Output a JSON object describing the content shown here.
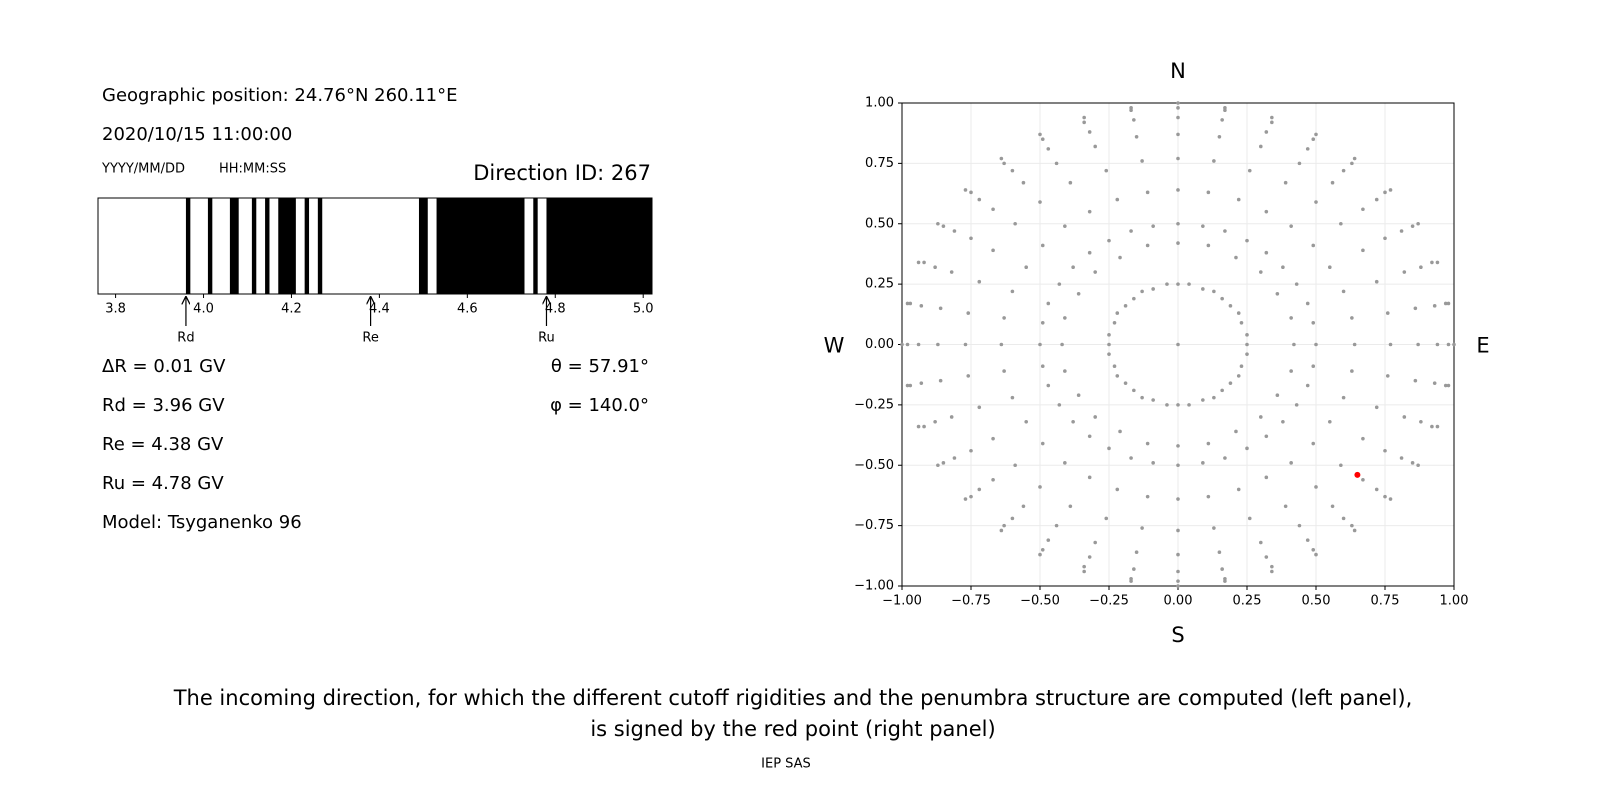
{
  "info": {
    "position": "Geographic position: 24.76°N 260.11°E",
    "datetime": "2020/10/15 11:00:00",
    "date_format": "YYYY/MM/DD",
    "time_format": "HH:MM:SS",
    "direction": "Direction ID: 267",
    "lines": [
      "ΔR = 0.01 GV",
      "Rd = 3.96 GV",
      "Re = 4.38 GV",
      "Ru = 4.78 GV",
      "Model: Tsyganenko 96"
    ],
    "angles": [
      "θ = 57.91°",
      "φ = 140.0°"
    ]
  },
  "chart_data": [
    {
      "type": "penumbra",
      "color": "#000000",
      "xlim": [
        3.76,
        5.02
      ],
      "xticks": [
        3.8,
        {
          "value": 4,
          "label": "4.0"
        },
        4.2,
        4.4,
        4.6,
        4.8,
        {
          "value": 5,
          "label": "5.0"
        }
      ],
      "bands": [
        [
          3.96,
          3.97
        ],
        [
          4.01,
          4.02
        ],
        [
          4.06,
          4.08
        ],
        [
          4.11,
          4.12
        ],
        [
          4.14,
          4.15
        ],
        [
          4.17,
          4.21
        ],
        [
          4.23,
          4.24
        ],
        [
          4.26,
          4.27
        ],
        [
          4.49,
          4.51
        ],
        [
          4.53,
          4.73
        ],
        [
          4.75,
          4.76
        ],
        [
          4.78,
          5.02
        ]
      ],
      "markers": [
        {
          "label": "Rd",
          "value": 3.96
        },
        {
          "label": "Re",
          "value": 4.38
        },
        {
          "label": "Ru",
          "value": 4.78
        }
      ]
    },
    {
      "type": "scatter",
      "xlim": [
        -1,
        1
      ],
      "ylim": [
        -1,
        1
      ],
      "grid": true,
      "xticks": [
        {
          "value": -1,
          "label": "−1.00"
        },
        {
          "value": -0.75,
          "label": "−0.75"
        },
        {
          "value": -0.5,
          "label": "−0.50"
        },
        {
          "value": -0.25,
          "label": "−0.25"
        },
        {
          "value": 0,
          "label": "0.00"
        },
        {
          "value": 0.25,
          "label": "0.25"
        },
        {
          "value": 0.5,
          "label": "0.50"
        },
        {
          "value": 0.75,
          "label": "0.75"
        },
        {
          "value": 1,
          "label": "1.00"
        }
      ],
      "yticks": [
        {
          "value": -1,
          "label": "−1.00"
        },
        {
          "value": -0.75,
          "label": "−0.75"
        },
        {
          "value": -0.5,
          "label": "−0.50"
        },
        {
          "value": -0.25,
          "label": "−0.25"
        },
        {
          "value": 0,
          "label": "0.00"
        },
        {
          "value": 0.25,
          "label": "0.25"
        },
        {
          "value": 0.5,
          "label": "0.50"
        },
        {
          "value": 0.75,
          "label": "0.75"
        },
        {
          "value": 1,
          "label": "1.00"
        }
      ],
      "compass": {
        "top": "N",
        "bottom": "S",
        "left": "W",
        "right": "E"
      },
      "series": [
        {
          "color": "#999999",
          "x": [
            0,
            0.25,
            0.25,
            0.23,
            0.22,
            0.19,
            0.16,
            0.13,
            0.09,
            0.04,
            0,
            -0.04,
            -0.09,
            -0.13,
            -0.16,
            -0.19,
            -0.22,
            -0.23,
            -0.25,
            -0.25,
            -0.25,
            -0.23,
            -0.22,
            -0.19,
            -0.16,
            -0.13,
            -0.09,
            -0.04,
            0,
            0.04,
            0.09,
            0.13,
            0.16,
            0.19,
            0.22,
            0.23,
            0.25,
            0.42,
            0.41,
            0.36,
            0.3,
            0.21,
            0.11,
            0,
            -0.11,
            -0.21,
            -0.3,
            -0.36,
            -0.41,
            -0.42,
            -0.41,
            -0.36,
            -0.3,
            -0.21,
            -0.11,
            0,
            0.11,
            0.21,
            0.3,
            0.36,
            0.41
          ],
          "y": [
            0,
            0,
            0.04,
            0.09,
            0.13,
            0.16,
            0.19,
            0.22,
            0.23,
            0.25,
            0.25,
            0.25,
            0.23,
            0.22,
            0.19,
            0.16,
            0.13,
            0.09,
            0.04,
            0,
            -0.04,
            -0.09,
            -0.13,
            -0.16,
            -0.19,
            -0.22,
            -0.23,
            -0.25,
            -0.25,
            -0.25,
            -0.23,
            -0.22,
            -0.19,
            -0.16,
            -0.13,
            -0.09,
            -0.04,
            0,
            0.11,
            0.21,
            0.3,
            0.36,
            0.41,
            0.42,
            0.41,
            0.36,
            0.3,
            0.21,
            0.11,
            0,
            -0.11,
            -0.21,
            -0.3,
            -0.36,
            -0.41,
            -0.42,
            -0.41,
            -0.36,
            -0.3,
            -0.21,
            -0.11
          ]
        },
        {
          "color": "#999999",
          "x": [
            0.5,
            0.64,
            0.77,
            0.87,
            0.94,
            0.98,
            1,
            0.49,
            0.63,
            0.76,
            0.86,
            0.93,
            0.97,
            0.98,
            0.47,
            0.6,
            0.72,
            0.82,
            0.88,
            0.92,
            0.94,
            0.43,
            0.55,
            0.67,
            0.75,
            0.81,
            0.85,
            0.87,
            0.38,
            0.49,
            0.59,
            0.67,
            0.72,
            0.75,
            0.77,
            0.32,
            0.41,
            0.5,
            0.56,
            0.6,
            0.63,
            0.64,
            0.25,
            0.32,
            0.39,
            0.44,
            0.47,
            0.49,
            0.5,
            0.17,
            0.22,
            0.26,
            0.3,
            0.32,
            0.34,
            0.34,
            0.09,
            0.11,
            0.13,
            0.15,
            0.16,
            0.17,
            0.17,
            0,
            0,
            0,
            0,
            0,
            0,
            0,
            -0.09,
            -0.11,
            -0.13,
            -0.15,
            -0.16,
            -0.17,
            -0.17,
            -0.17,
            -0.22,
            -0.26,
            -0.3,
            -0.32,
            -0.34,
            -0.34,
            -0.25,
            -0.32,
            -0.39,
            -0.44,
            -0.47,
            -0.49,
            -0.5,
            -0.32,
            -0.41,
            -0.5,
            -0.56,
            -0.6,
            -0.63,
            -0.64,
            -0.38,
            -0.49,
            -0.59,
            -0.67,
            -0.72,
            -0.75,
            -0.77,
            -0.43,
            -0.55,
            -0.67,
            -0.75,
            -0.81,
            -0.85,
            -0.87,
            -0.47,
            -0.6,
            -0.72,
            -0.82,
            -0.88,
            -0.92,
            -0.94,
            -0.49,
            -0.63,
            -0.76,
            -0.86,
            -0.93,
            -0.97,
            -0.98,
            -0.5,
            -0.64,
            -0.77,
            -0.87,
            -0.94,
            -0.98,
            -1,
            -0.49,
            -0.63,
            -0.76,
            -0.86,
            -0.93,
            -0.97,
            -0.98,
            -0.47,
            -0.6,
            -0.72,
            -0.82,
            -0.88,
            -0.92,
            -0.94,
            -0.43,
            -0.55,
            -0.67,
            -0.75,
            -0.81,
            -0.85,
            -0.87,
            -0.38,
            -0.49,
            -0.59,
            -0.67,
            -0.72,
            -0.75,
            -0.77,
            -0.32,
            -0.41,
            -0.5,
            -0.56,
            -0.6,
            -0.63,
            -0.64,
            -0.25,
            -0.32,
            -0.39,
            -0.44,
            -0.47,
            -0.49,
            -0.5,
            -0.17,
            -0.22,
            -0.26,
            -0.3,
            -0.32,
            -0.34,
            -0.34,
            -0.09,
            -0.11,
            -0.13,
            -0.15,
            -0.16,
            -0.17,
            -0.17,
            0,
            0,
            0,
            0,
            0,
            0,
            0,
            0.09,
            0.11,
            0.13,
            0.15,
            0.16,
            0.17,
            0.17,
            0.17,
            0.22,
            0.26,
            0.3,
            0.32,
            0.34,
            0.34,
            0.25,
            0.32,
            0.39,
            0.44,
            0.47,
            0.49,
            0.5,
            0.32,
            0.41,
            0.5,
            0.56,
            0.6,
            0.63,
            0.64,
            0.38,
            0.49,
            0.59,
            0.67,
            0.72,
            0.75,
            0.77,
            0.43,
            0.55,
            0.67,
            0.75,
            0.81,
            0.85,
            0.87,
            0.47,
            0.6,
            0.72,
            0.82,
            0.88,
            0.92,
            0.94,
            0.49,
            0.63,
            0.76,
            0.86,
            0.93,
            0.97,
            0.98
          ],
          "y": [
            0,
            0,
            0,
            0,
            0,
            0,
            0,
            0.09,
            0.11,
            0.13,
            0.15,
            0.16,
            0.17,
            0.17,
            0.17,
            0.22,
            0.26,
            0.3,
            0.32,
            0.34,
            0.34,
            0.25,
            0.32,
            0.39,
            0.44,
            0.47,
            0.49,
            0.5,
            0.32,
            0.41,
            0.5,
            0.56,
            0.6,
            0.63,
            0.64,
            0.38,
            0.49,
            0.59,
            0.67,
            0.72,
            0.75,
            0.77,
            0.43,
            0.55,
            0.67,
            0.75,
            0.81,
            0.85,
            0.87,
            0.47,
            0.6,
            0.72,
            0.82,
            0.88,
            0.92,
            0.94,
            0.49,
            0.63,
            0.76,
            0.86,
            0.93,
            0.97,
            0.98,
            0.5,
            0.64,
            0.77,
            0.87,
            0.94,
            0.98,
            1,
            0.49,
            0.63,
            0.76,
            0.86,
            0.93,
            0.97,
            0.98,
            0.47,
            0.6,
            0.72,
            0.82,
            0.88,
            0.92,
            0.94,
            0.43,
            0.55,
            0.67,
            0.75,
            0.81,
            0.85,
            0.87,
            0.38,
            0.49,
            0.59,
            0.67,
            0.72,
            0.75,
            0.77,
            0.32,
            0.41,
            0.5,
            0.56,
            0.6,
            0.63,
            0.64,
            0.25,
            0.32,
            0.39,
            0.44,
            0.47,
            0.49,
            0.5,
            0.17,
            0.22,
            0.26,
            0.3,
            0.32,
            0.34,
            0.34,
            0.09,
            0.11,
            0.13,
            0.15,
            0.16,
            0.17,
            0.17,
            0,
            0,
            0,
            0,
            0,
            0,
            0,
            -0.09,
            -0.11,
            -0.13,
            -0.15,
            -0.16,
            -0.17,
            -0.17,
            -0.17,
            -0.22,
            -0.26,
            -0.3,
            -0.32,
            -0.34,
            -0.34,
            -0.25,
            -0.32,
            -0.39,
            -0.44,
            -0.47,
            -0.49,
            -0.5,
            -0.32,
            -0.41,
            -0.5,
            -0.56,
            -0.6,
            -0.63,
            -0.64,
            -0.38,
            -0.49,
            -0.59,
            -0.67,
            -0.72,
            -0.75,
            -0.77,
            -0.43,
            -0.55,
            -0.67,
            -0.75,
            -0.81,
            -0.85,
            -0.87,
            -0.47,
            -0.6,
            -0.72,
            -0.82,
            -0.88,
            -0.92,
            -0.94,
            -0.49,
            -0.63,
            -0.76,
            -0.86,
            -0.93,
            -0.97,
            -0.98,
            -0.5,
            -0.64,
            -0.77,
            -0.87,
            -0.94,
            -0.98,
            -1,
            -0.49,
            -0.63,
            -0.76,
            -0.86,
            -0.93,
            -0.97,
            -0.98,
            -0.47,
            -0.6,
            -0.72,
            -0.82,
            -0.88,
            -0.92,
            -0.94,
            -0.43,
            -0.55,
            -0.67,
            -0.75,
            -0.81,
            -0.85,
            -0.87,
            -0.38,
            -0.49,
            -0.59,
            -0.67,
            -0.72,
            -0.75,
            -0.77,
            -0.32,
            -0.41,
            -0.5,
            -0.56,
            -0.6,
            -0.63,
            -0.64,
            -0.25,
            -0.32,
            -0.39,
            -0.44,
            -0.47,
            -0.49,
            -0.5,
            -0.17,
            -0.22,
            -0.26,
            -0.3,
            -0.32,
            -0.34,
            -0.34,
            -0.09,
            -0.11,
            -0.13,
            -0.15,
            -0.16,
            -0.17,
            -0.17
          ]
        },
        {
          "color": "#ff0000",
          "x": [
            0.65
          ],
          "y": [
            -0.54
          ]
        }
      ]
    }
  ],
  "caption": [
    "The incoming direction, for which the different cutoff rigidities and the penumbra structure are computed (left panel),",
    "is signed by the red point (right panel)"
  ],
  "footer": "IEP SAS"
}
